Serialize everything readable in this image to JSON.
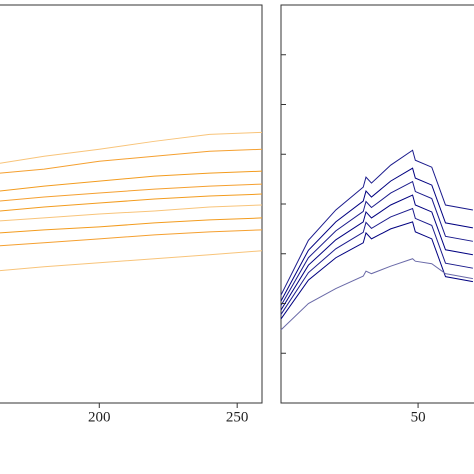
{
  "chart_data": [
    {
      "type": "line",
      "x": [
        164,
        180,
        200,
        220,
        240,
        259
      ],
      "xlim": [
        164,
        259
      ],
      "xticks": [
        200,
        250
      ],
      "ylim": [
        0,
        400
      ],
      "series": [
        {
          "color": "#f8c47a",
          "values": [
            241,
            248,
            255,
            263,
            270,
            272
          ]
        },
        {
          "color": "#f5a030",
          "values": [
            231,
            235,
            243,
            248,
            253,
            255
          ]
        },
        {
          "color": "#f39c1f",
          "values": [
            213,
            218,
            223,
            228,
            231,
            233
          ]
        },
        {
          "color": "#f5a030",
          "values": [
            203,
            207,
            211,
            215,
            218,
            220
          ]
        },
        {
          "color": "#f39c1f",
          "values": [
            193,
            197,
            201,
            205,
            208,
            210
          ]
        },
        {
          "color": "#f8c47a",
          "values": [
            183,
            186,
            190,
            193,
            197,
            199
          ]
        },
        {
          "color": "#f39c1f",
          "values": [
            171,
            174,
            177,
            181,
            184,
            186
          ]
        },
        {
          "color": "#f5a030",
          "values": [
            158,
            161,
            165,
            169,
            172,
            174
          ]
        },
        {
          "color": "#f8c47a",
          "values": [
            133,
            137,
            141,
            145,
            149,
            153
          ]
        }
      ]
    },
    {
      "type": "line",
      "x": [
        0,
        10,
        20,
        30,
        31,
        33,
        40,
        48,
        49,
        55,
        60,
        70
      ],
      "xlim": [
        0,
        70.4
      ],
      "xticks": [
        50
      ],
      "ylim": [
        0,
        8
      ],
      "yticks": [
        1,
        2,
        3,
        4,
        5,
        6,
        7
      ],
      "series": [
        {
          "color": "#1a1a8c",
          "values": [
            2.17,
            3.27,
            3.88,
            4.34,
            4.54,
            4.42,
            4.78,
            5.08,
            4.88,
            4.74,
            3.98,
            3.88
          ]
        },
        {
          "color": "#000080",
          "values": [
            2.05,
            3.07,
            3.64,
            4.06,
            4.26,
            4.14,
            4.46,
            4.72,
            4.52,
            4.38,
            3.62,
            3.52
          ]
        },
        {
          "color": "#1a1a8c",
          "values": [
            1.96,
            2.92,
            3.46,
            3.85,
            4.05,
            3.93,
            4.22,
            4.45,
            4.25,
            4.11,
            3.35,
            3.25
          ]
        },
        {
          "color": "#000080",
          "values": [
            1.87,
            2.77,
            3.28,
            3.64,
            3.84,
            3.72,
            3.98,
            4.18,
            3.98,
            3.84,
            3.08,
            2.98
          ]
        },
        {
          "color": "#1a1a8c",
          "values": [
            1.78,
            2.62,
            3.1,
            3.43,
            3.63,
            3.51,
            3.74,
            3.91,
            3.71,
            3.57,
            2.81,
            2.71
          ]
        },
        {
          "color": "#000080",
          "values": [
            1.69,
            2.47,
            2.92,
            3.22,
            3.42,
            3.3,
            3.5,
            3.64,
            3.44,
            3.3,
            2.54,
            2.44
          ]
        },
        {
          "color": "#6a6aa8",
          "values": [
            1.47,
            2.0,
            2.3,
            2.55,
            2.65,
            2.6,
            2.75,
            2.9,
            2.85,
            2.8,
            2.6,
            2.5
          ]
        }
      ]
    }
  ]
}
